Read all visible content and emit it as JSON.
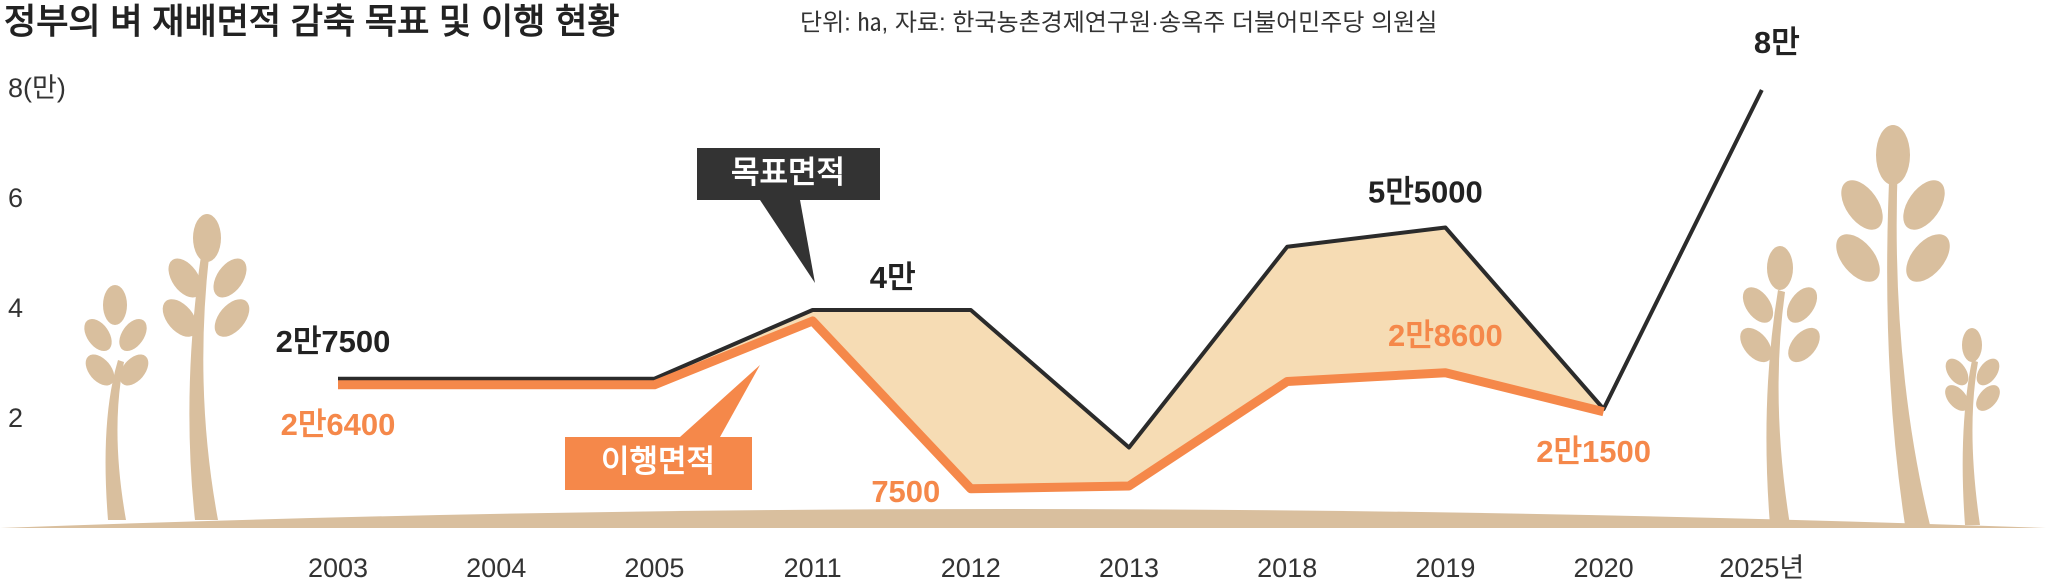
{
  "chart_data": {
    "type": "line",
    "title": "정부의 벼 재배면적 감축 목표 및 이행 현황",
    "subtitle": "단위: ㏊, 자료: 한국농촌경제연구원·송옥주 더불어민주당 의원실",
    "categories": [
      "2003",
      "2004",
      "2005",
      "2011",
      "2012",
      "2013",
      "2018",
      "2019",
      "2020",
      "2025년"
    ],
    "series": [
      {
        "name": "목표면적",
        "color": "#2b2b2b",
        "values": [
          2.75,
          2.75,
          2.75,
          4,
          4,
          1.5,
          5.15,
          5.5,
          2.2,
          8
        ],
        "value_labels": [
          "2만7500",
          null,
          null,
          "4만",
          null,
          null,
          null,
          "5만5000",
          null,
          "8만"
        ]
      },
      {
        "name": "이행면적",
        "color": "#f5884a",
        "values": [
          2.64,
          2.64,
          2.64,
          3.8,
          0.75,
          0.8,
          2.7,
          2.86,
          2.15,
          null
        ],
        "value_labels": [
          "2만6400",
          null,
          null,
          null,
          "7500",
          null,
          null,
          "2만8600",
          "2만1500",
          null
        ]
      }
    ],
    "ylim": [
      0,
      8.2
    ],
    "yticks": [
      2,
      4,
      6,
      {
        "value": 8,
        "label": "8(만)"
      }
    ],
    "fill_between": "#f6dcb4"
  }
}
